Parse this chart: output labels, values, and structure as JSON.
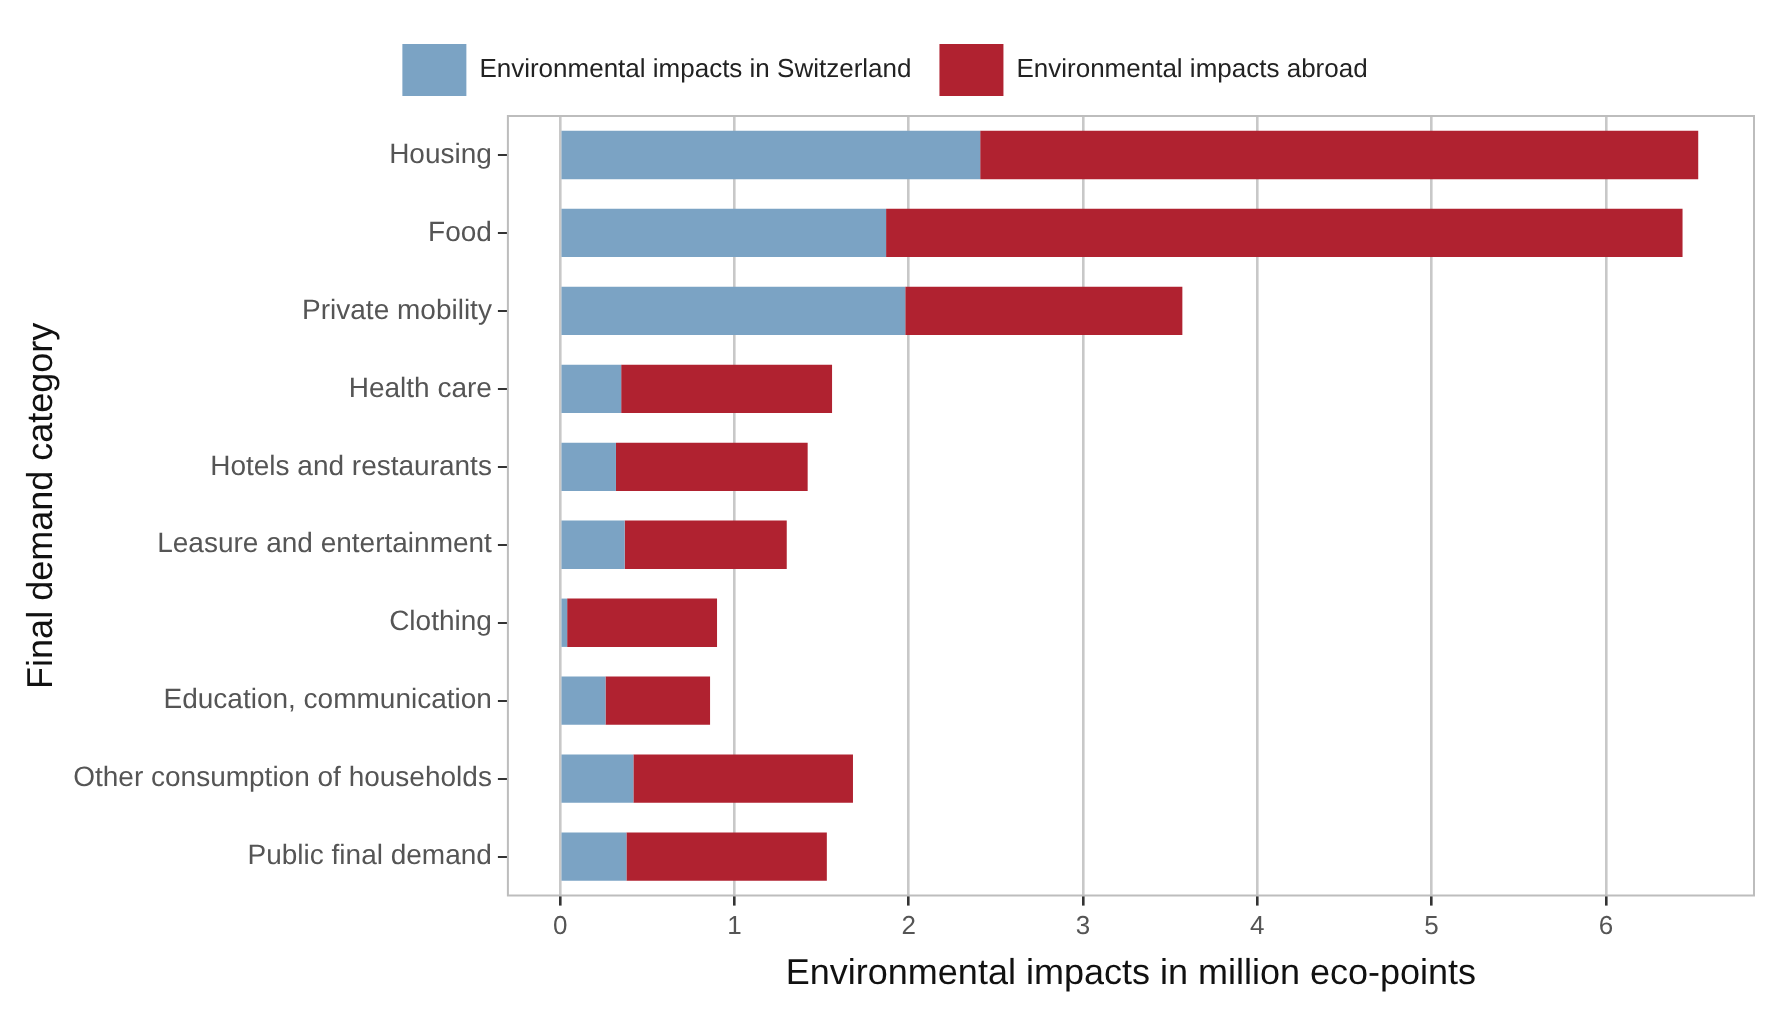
{
  "chart_data": {
    "type": "bar",
    "orientation": "horizontal",
    "stacked": true,
    "xlabel": "Environmental impacts in million eco-points",
    "ylabel": "Final demand category",
    "categories": [
      "Housing",
      "Food",
      "Private mobility",
      "Health care",
      "Hotels and restaurants",
      "Leasure and entertainment",
      "Clothing",
      "Education, communication",
      "Other consumption of households",
      "Public final demand"
    ],
    "series": [
      {
        "name": "Environmental impacts in Switzerland",
        "color": "#7ba3c4",
        "values": [
          2.41,
          1.87,
          1.98,
          0.35,
          0.32,
          0.37,
          0.04,
          0.26,
          0.42,
          0.38
        ]
      },
      {
        "name": "Environmental impacts abroad",
        "color": "#b02230",
        "values": [
          4.12,
          4.57,
          1.59,
          1.21,
          1.1,
          0.93,
          0.86,
          0.6,
          1.26,
          1.15
        ]
      }
    ],
    "xlim": [
      -0.3,
      6.85
    ],
    "xticks": [
      0,
      1,
      2,
      3,
      4,
      5,
      6
    ],
    "grid": "x",
    "legend": "top"
  }
}
